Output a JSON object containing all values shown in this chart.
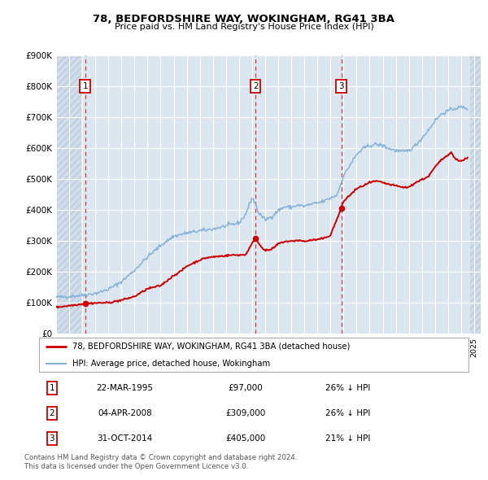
{
  "title": "78, BEDFORDSHIRE WAY, WOKINGHAM, RG41 3BA",
  "subtitle": "Price paid vs. HM Land Registry's House Price Index (HPI)",
  "ylim": [
    0,
    900000
  ],
  "yticks": [
    0,
    100000,
    200000,
    300000,
    400000,
    500000,
    600000,
    700000,
    800000,
    900000
  ],
  "ytick_labels": [
    "£0",
    "£100K",
    "£200K",
    "£300K",
    "£400K",
    "£500K",
    "£600K",
    "£700K",
    "£800K",
    "£900K"
  ],
  "background_color": "#ffffff",
  "plot_bg_color": "#dce6f0",
  "grid_color": "#ffffff",
  "hatch_color": "#c8d4e0",
  "sale_color": "#cc0000",
  "hpi_color": "#7fb0d8",
  "sale_label": "78, BEDFORDSHIRE WAY, WOKINGHAM, RG41 3BA (detached house)",
  "hpi_label": "HPI: Average price, detached house, Wokingham",
  "transactions": [
    {
      "num": 1,
      "date_label": "22-MAR-1995",
      "price": 97000,
      "pct": "26%",
      "x": 1995.22
    },
    {
      "num": 2,
      "date_label": "04-APR-2008",
      "price": 309000,
      "pct": "26%",
      "x": 2008.26
    },
    {
      "num": 3,
      "date_label": "31-OCT-2014",
      "price": 405000,
      "pct": "21%",
      "x": 2014.83
    }
  ],
  "footnote1": "Contains HM Land Registry data © Crown copyright and database right 2024.",
  "footnote2": "This data is licensed under the Open Government Licence v3.0.",
  "xmin": 1993.0,
  "xmax": 2025.5,
  "hpi_anchors": [
    [
      1993.0,
      118000
    ],
    [
      1994.0,
      120000
    ],
    [
      1995.0,
      124000
    ],
    [
      1996.0,
      130000
    ],
    [
      1997.0,
      143000
    ],
    [
      1998.0,
      168000
    ],
    [
      1999.0,
      205000
    ],
    [
      2000.0,
      248000
    ],
    [
      2001.0,
      285000
    ],
    [
      2002.0,
      315000
    ],
    [
      2003.0,
      325000
    ],
    [
      2004.0,
      332000
    ],
    [
      2005.0,
      338000
    ],
    [
      2006.0,
      348000
    ],
    [
      2007.0,
      358000
    ],
    [
      2007.5,
      385000
    ],
    [
      2008.0,
      440000
    ],
    [
      2008.25,
      420000
    ],
    [
      2008.5,
      390000
    ],
    [
      2009.0,
      368000
    ],
    [
      2009.5,
      378000
    ],
    [
      2010.0,
      398000
    ],
    [
      2010.5,
      410000
    ],
    [
      2011.0,
      408000
    ],
    [
      2011.5,
      415000
    ],
    [
      2012.0,
      412000
    ],
    [
      2012.5,
      418000
    ],
    [
      2013.0,
      422000
    ],
    [
      2013.5,
      428000
    ],
    [
      2014.0,
      438000
    ],
    [
      2014.5,
      448000
    ],
    [
      2015.0,
      510000
    ],
    [
      2015.5,
      545000
    ],
    [
      2016.0,
      578000
    ],
    [
      2016.5,
      598000
    ],
    [
      2017.0,
      608000
    ],
    [
      2017.5,
      612000
    ],
    [
      2018.0,
      608000
    ],
    [
      2018.5,
      598000
    ],
    [
      2019.0,
      592000
    ],
    [
      2019.5,
      588000
    ],
    [
      2020.0,
      592000
    ],
    [
      2020.5,
      608000
    ],
    [
      2021.0,
      632000
    ],
    [
      2021.5,
      658000
    ],
    [
      2022.0,
      688000
    ],
    [
      2022.5,
      710000
    ],
    [
      2023.0,
      720000
    ],
    [
      2023.5,
      728000
    ],
    [
      2024.0,
      732000
    ],
    [
      2024.5,
      728000
    ]
  ],
  "sale_anchors": [
    [
      1993.0,
      85000
    ],
    [
      1995.22,
      97000
    ],
    [
      1996.0,
      99000
    ],
    [
      1997.0,
      100000
    ],
    [
      1998.0,
      108000
    ],
    [
      1999.0,
      120000
    ],
    [
      2000.0,
      145000
    ],
    [
      2001.0,
      155000
    ],
    [
      2002.0,
      188000
    ],
    [
      2002.5,
      200000
    ],
    [
      2003.0,
      218000
    ],
    [
      2003.5,
      228000
    ],
    [
      2004.0,
      238000
    ],
    [
      2004.5,
      245000
    ],
    [
      2005.0,
      248000
    ],
    [
      2005.5,
      250000
    ],
    [
      2006.0,
      252000
    ],
    [
      2006.5,
      254000
    ],
    [
      2007.0,
      254000
    ],
    [
      2007.5,
      255000
    ],
    [
      2008.26,
      309000
    ],
    [
      2008.5,
      292000
    ],
    [
      2009.0,
      268000
    ],
    [
      2009.5,
      272000
    ],
    [
      2010.0,
      290000
    ],
    [
      2010.5,
      298000
    ],
    [
      2011.0,
      298000
    ],
    [
      2011.5,
      302000
    ],
    [
      2012.0,
      298000
    ],
    [
      2012.5,
      302000
    ],
    [
      2013.0,
      304000
    ],
    [
      2013.5,
      308000
    ],
    [
      2014.0,
      318000
    ],
    [
      2014.83,
      405000
    ],
    [
      2015.0,
      428000
    ],
    [
      2015.5,
      448000
    ],
    [
      2016.0,
      468000
    ],
    [
      2016.5,
      478000
    ],
    [
      2017.0,
      488000
    ],
    [
      2017.5,
      493000
    ],
    [
      2018.0,
      488000
    ],
    [
      2018.5,
      482000
    ],
    [
      2019.0,
      478000
    ],
    [
      2019.5,
      473000
    ],
    [
      2020.0,
      473000
    ],
    [
      2020.5,
      488000
    ],
    [
      2021.0,
      498000
    ],
    [
      2021.5,
      508000
    ],
    [
      2022.0,
      538000
    ],
    [
      2022.5,
      562000
    ],
    [
      2023.0,
      578000
    ],
    [
      2023.2,
      588000
    ],
    [
      2023.5,
      568000
    ],
    [
      2023.8,
      558000
    ],
    [
      2024.2,
      562000
    ],
    [
      2024.5,
      568000
    ]
  ]
}
